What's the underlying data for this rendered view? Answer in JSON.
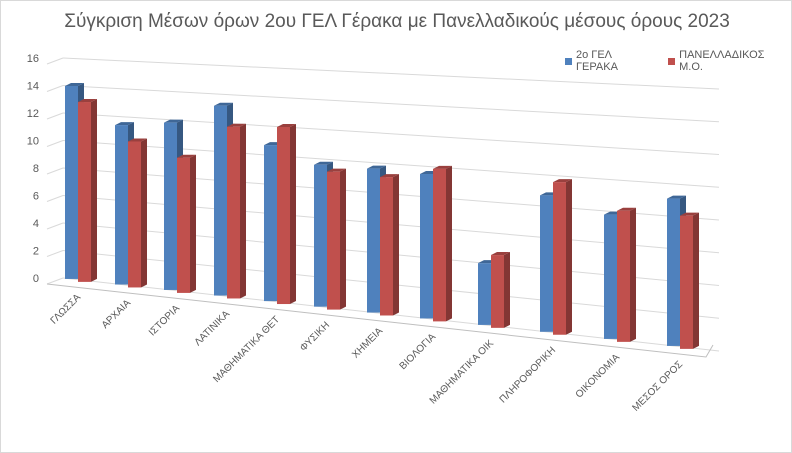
{
  "chart_data": {
    "type": "bar",
    "title": "Σύγκριση Μέσων όρων 2ου ΓΕΛ Γέρακα με Πανελλαδικούς μέσους όρους 2023",
    "xlabel": "",
    "ylabel": "",
    "ylim": [
      0,
      16
    ],
    "yticks": [
      "0",
      "2",
      "4",
      "6",
      "8",
      "10",
      "12",
      "14",
      "16"
    ],
    "grid": true,
    "legend_position": "top-right",
    "categories": [
      "ΓΛΩΣΣΑ",
      "ΑΡΧΑΙΑ",
      "ΙΣΤΟΡΙΑ",
      "ΛΑΤΙΝΙΚΑ",
      "ΜΑΘΗΜΑΤΙΚΑ ΘΕΤ",
      "ΦΥΣΙΚΗ",
      "ΧΗΜΕΙΑ",
      "ΒΙΟΛΟΓΙΑ",
      "ΜΑΘΗΜΑΤΙΚΑ ΟΙΚ",
      "ΠΛΗΡΟΦΟΡΙΚΗ",
      "ΟΙΚΟΝΟΜΙΑ",
      "ΜΕΣΟΣ ΟΡΟΣ"
    ],
    "series": [
      {
        "name": "2ο ΓΕΛ ΓΕΡΑΚΑ",
        "color": "#4f81bd",
        "values": [
          14.0,
          11.4,
          11.8,
          13.2,
          10.7,
          9.6,
          9.6,
          9.5,
          4.0,
          8.7,
          7.8,
          9.1
        ]
      },
      {
        "name": "ΠΑΝΕΛΛΑΔΙΚΟΣ Μ.Ο.",
        "color": "#c0504d",
        "values": [
          13.0,
          10.4,
          9.5,
          11.9,
          12.1,
          9.3,
          9.2,
          10.0,
          4.7,
          9.7,
          8.2,
          8.2
        ]
      }
    ]
  }
}
